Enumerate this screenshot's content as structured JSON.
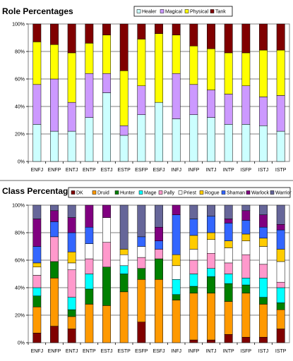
{
  "chart_data": [
    {
      "type": "bar",
      "stacked": true,
      "title": "Role Percentages",
      "xlabel": "",
      "ylabel": "",
      "ylim": [
        0,
        100
      ],
      "yticks": [
        "0%",
        "20%",
        "40%",
        "60%",
        "80%",
        "100%"
      ],
      "grid": true,
      "legend_position": "top-right",
      "categories": [
        "ENFJ",
        "ENFP",
        "ENTJ",
        "ENTP",
        "ESTJ",
        "ESTP",
        "ESFP",
        "ESFJ",
        "INFJ",
        "INFP",
        "INTJ",
        "INTP",
        "ISFP",
        "ISTJ",
        "ISTP"
      ],
      "series": [
        {
          "name": "Healer",
          "color": "#ccffff",
          "values": [
            27,
            22,
            22,
            32,
            50,
            19,
            34,
            43,
            31,
            34,
            32,
            27,
            27,
            26,
            22
          ]
        },
        {
          "name": "Magical",
          "color": "#cc99ff",
          "values": [
            29,
            38,
            21,
            32,
            14,
            7,
            21,
            0,
            33,
            22,
            20,
            22,
            28,
            21,
            26
          ]
        },
        {
          "name": "Physical",
          "color": "#ffff00",
          "values": [
            31,
            25,
            36,
            22,
            28,
            40,
            34,
            50,
            28,
            28,
            30,
            30,
            24,
            34,
            33
          ]
        },
        {
          "name": "Tank",
          "color": "#800000",
          "values": [
            13,
            15,
            21,
            14,
            8,
            34,
            11,
            7,
            8,
            16,
            18,
            21,
            21,
            19,
            19
          ]
        }
      ]
    },
    {
      "type": "bar",
      "stacked": true,
      "title": "Class Percentages",
      "xlabel": "",
      "ylabel": "",
      "ylim": [
        0,
        100
      ],
      "yticks": [
        "0%",
        "20%",
        "40%",
        "60%",
        "80%",
        "100%"
      ],
      "grid": true,
      "legend_position": "top-right",
      "categories": [
        "ENFJ",
        "ENFP",
        "ENTJ",
        "ENTP",
        "ESTJ",
        "ESTP",
        "ESFP",
        "ESFJ",
        "INFJ",
        "INFP",
        "INTJ",
        "INTP",
        "ISFP",
        "ISTJ",
        "ISTP"
      ],
      "series": [
        {
          "name": "DK",
          "color": "#800000",
          "values": [
            7,
            12,
            10,
            0,
            0,
            0,
            15,
            0,
            0,
            2,
            2,
            6,
            4,
            4,
            10
          ]
        },
        {
          "name": "Druid",
          "color": "#ff9900",
          "values": [
            19,
            35,
            9,
            28,
            27,
            37,
            31,
            46,
            31,
            34,
            34,
            24,
            32,
            24,
            14
          ]
        },
        {
          "name": "Hunter",
          "color": "#008000",
          "values": [
            8,
            12,
            5,
            11,
            28,
            13,
            8,
            15,
            4,
            5,
            12,
            13,
            6,
            5,
            5
          ]
        },
        {
          "name": "Mage",
          "color": "#00ffff",
          "values": [
            6,
            0,
            9,
            11,
            0,
            6,
            0,
            0,
            11,
            9,
            6,
            7,
            5,
            14,
            11
          ]
        },
        {
          "name": "Pally",
          "color": "#ff99cc",
          "values": [
            9,
            18,
            20,
            11,
            18,
            0,
            8,
            7,
            0,
            10,
            11,
            8,
            17,
            10,
            4
          ]
        },
        {
          "name": "Priest",
          "color": "#ffffff",
          "values": [
            6,
            0,
            5,
            11,
            18,
            8,
            8,
            0,
            10,
            8,
            10,
            11,
            10,
            13,
            15
          ]
        },
        {
          "name": "Rogue",
          "color": "#ffcc00",
          "values": [
            3,
            0,
            8,
            0,
            0,
            4,
            0,
            0,
            8,
            10,
            5,
            5,
            5,
            6,
            9
          ]
        },
        {
          "name": "Shaman",
          "color": "#3366ff",
          "values": [
            12,
            11,
            14,
            12,
            0,
            0,
            7,
            6,
            29,
            12,
            12,
            13,
            10,
            8,
            14
          ]
        },
        {
          "name": "Warlock",
          "color": "#800080",
          "values": [
            20,
            8,
            11,
            16,
            9,
            0,
            0,
            10,
            7,
            0,
            0,
            3,
            7,
            9,
            4
          ]
        },
        {
          "name": "Warrior",
          "color": "#666699",
          "values": [
            10,
            4,
            9,
            0,
            0,
            32,
            23,
            16,
            0,
            10,
            8,
            10,
            4,
            7,
            14
          ]
        }
      ]
    }
  ]
}
